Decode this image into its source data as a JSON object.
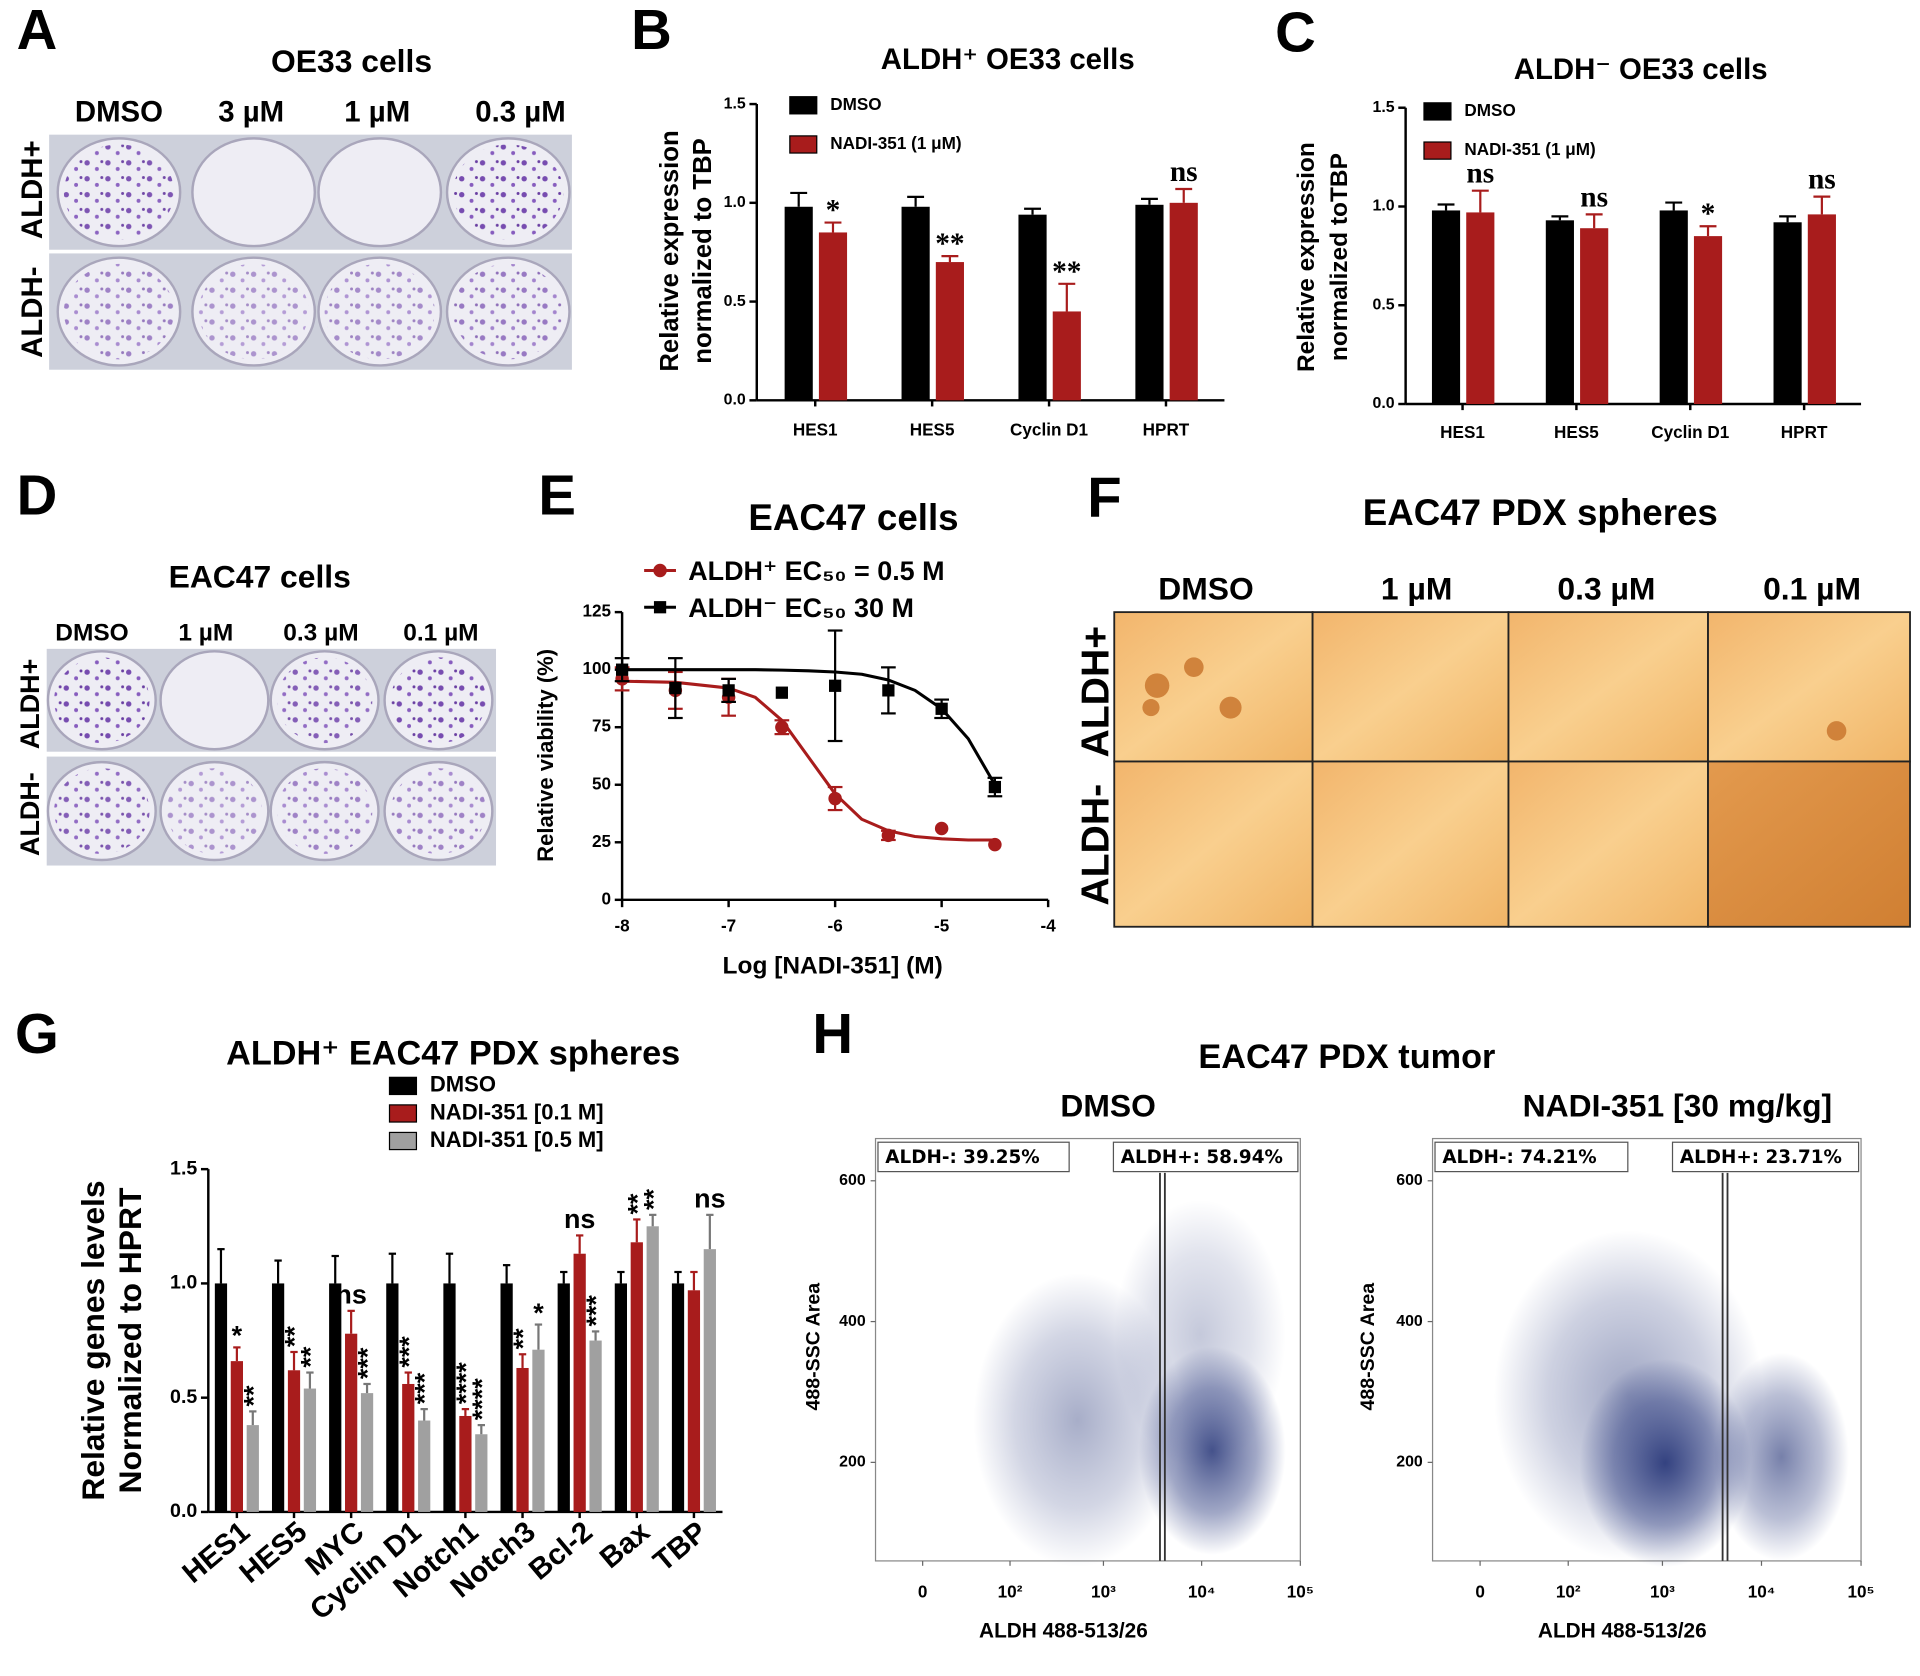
{
  "panel_letters": [
    "A",
    "B",
    "C",
    "D",
    "E",
    "F",
    "G",
    "H"
  ],
  "panel_a": {
    "title": "OE33 cells",
    "columns": [
      "DMSO",
      "3 µM",
      "1 µM",
      "0.3 µM"
    ],
    "rows": [
      "ALDH+",
      "ALDH-"
    ]
  },
  "panel_d": {
    "title": "EAC47 cells",
    "columns": [
      "DMSO",
      "1 µM",
      "0.3 µM",
      "0.1 µM"
    ],
    "rows": [
      "ALDH+",
      "ALDH-"
    ]
  },
  "panel_f": {
    "title": "EAC47 PDX spheres",
    "columns": [
      "DMSO",
      "1 µM",
      "0.3 µM",
      "0.1 µM"
    ],
    "rows": [
      "ALDH+",
      "ALDH-"
    ]
  },
  "panel_h": {
    "title": "EAC47 PDX tumor"
  },
  "chart_data": [
    {
      "type": "bar",
      "title": "ALDH⁺ OE33 cells",
      "ylabel": [
        "Relative expression",
        "normalized to TBP"
      ],
      "categories": [
        "HES1",
        "HES5",
        "Cyclin D1",
        "HPRT"
      ],
      "series": [
        {
          "name": "DMSO",
          "color": "#000000",
          "values": [
            0.98,
            0.98,
            0.94,
            0.99
          ],
          "errors": [
            0.07,
            0.05,
            0.03,
            0.03
          ]
        },
        {
          "name": "NADI-351 (1 μM)",
          "color": "#a81c1c",
          "values": [
            0.85,
            0.7,
            0.45,
            1.0
          ],
          "errors": [
            0.05,
            0.03,
            0.14,
            0.07
          ],
          "annotations": [
            "*",
            "**",
            "**",
            "ns"
          ]
        }
      ],
      "ylim": [
        0,
        1.5
      ],
      "yticks": [
        {
          "value": 0,
          "label": "0.0"
        },
        0.5,
        {
          "value": 1,
          "label": "1.0"
        },
        1.5
      ]
    },
    {
      "type": "bar",
      "title": "ALDH⁻ OE33 cells",
      "ylabel": [
        "Relative expression",
        "normalized toTBP"
      ],
      "categories": [
        "HES1",
        "HES5",
        "Cyclin D1",
        "HPRT"
      ],
      "series": [
        {
          "name": "DMSO",
          "color": "#000000",
          "values": [
            0.98,
            0.93,
            0.98,
            0.92
          ],
          "errors": [
            0.03,
            0.02,
            0.04,
            0.03
          ]
        },
        {
          "name": "NADI-351 (1 μM)",
          "color": "#a81c1c",
          "values": [
            0.97,
            0.89,
            0.85,
            0.96
          ],
          "errors": [
            0.11,
            0.07,
            0.05,
            0.09
          ],
          "annotations": [
            "ns",
            "ns",
            "*",
            "ns"
          ]
        }
      ],
      "ylim": [
        0,
        1.5
      ],
      "yticks": [
        {
          "value": 0,
          "label": "0.0"
        },
        0.5,
        {
          "value": 1,
          "label": "1.0"
        },
        1.5
      ]
    },
    {
      "type": "scatter",
      "title": "EAC47  cells",
      "xlabel": "Log [NADI-351] (M)",
      "ylabel": "Relative viability (%)",
      "x": [
        -8,
        -7.5,
        -7,
        -6.5,
        -6,
        -5.5,
        -5,
        -4.5
      ],
      "fit_x": [
        -8,
        -7.5,
        -7,
        -6.75,
        -6.5,
        -6.25,
        -6,
        -5.75,
        -5.5,
        -5.25,
        -5,
        -4.75,
        -4.5
      ],
      "series": [
        {
          "name": "ALDH⁺ EC₅₀ = 0.5   M",
          "color": "#a81c1c",
          "marker": "circle",
          "values": [
            96,
            91,
            88,
            75,
            44,
            28,
            31,
            24
          ],
          "errors": [
            5,
            8,
            8,
            3,
            5,
            2,
            0,
            0
          ],
          "fit_values": [
            95,
            94.5,
            92,
            88,
            78,
            62,
            46,
            35,
            30,
            27.5,
            26.5,
            26,
            26
          ]
        },
        {
          "name": "ALDH⁻ EC₅₀   30   M",
          "color": "#000000",
          "marker": "square",
          "values": [
            100,
            92,
            91,
            90,
            93,
            91,
            83,
            49
          ],
          "errors": [
            5,
            13,
            5,
            0,
            24,
            10,
            4,
            4
          ],
          "fit_values": [
            100,
            100,
            100,
            100,
            99.8,
            99.5,
            99,
            98,
            95.5,
            91,
            83,
            70,
            50
          ]
        }
      ],
      "xlim": [
        -8,
        -4
      ],
      "xticks": [
        -8,
        -7,
        -6,
        -5,
        -4
      ],
      "ylim": [
        0,
        125
      ],
      "yticks": [
        0,
        25,
        50,
        75,
        100,
        125
      ]
    },
    {
      "type": "bar",
      "title": "ALDH⁺ EAC47 PDX spheres",
      "ylabel": [
        "Relative genes levels",
        "Normalized to HPRT"
      ],
      "categories": [
        "HES1",
        "HES5",
        "MYC",
        "Cyclin D1",
        "Notch1",
        "Notch3",
        "Bcl-2",
        "Bax",
        "TBP"
      ],
      "series": [
        {
          "name": "DMSO",
          "color": "#000000",
          "values": [
            1.0,
            1.0,
            1.0,
            1.0,
            1.0,
            1.0,
            1.0,
            1.0,
            1.0
          ],
          "errors": [
            0.15,
            0.1,
            0.12,
            0.13,
            0.13,
            0.08,
            0.05,
            0.05,
            0.05
          ]
        },
        {
          "name": "NADI-351 [0.1   M]",
          "color": "#a81c1c",
          "values": [
            0.66,
            0.62,
            0.78,
            0.56,
            0.42,
            0.63,
            1.13,
            1.18,
            0.97
          ],
          "errors": [
            0.06,
            0.08,
            0.1,
            0.05,
            0.03,
            0.06,
            0.08,
            0.1,
            0.08
          ],
          "annotations": [
            "*",
            "**",
            "ns",
            "***",
            "****",
            "**",
            "ns",
            "**",
            null
          ]
        },
        {
          "name": "NADI-351 [0.5   M]",
          "color": "#a0a0a0",
          "values": [
            0.38,
            0.54,
            0.52,
            0.4,
            0.34,
            0.71,
            0.75,
            1.25,
            1.15
          ],
          "errors": [
            0.06,
            0.07,
            0.04,
            0.05,
            0.04,
            0.11,
            0.04,
            0.05,
            0.15
          ],
          "annotations": [
            "**",
            "**",
            "***",
            "***",
            "****",
            "*",
            "***",
            "**",
            "ns"
          ]
        }
      ],
      "ylim": [
        0,
        1.5
      ],
      "yticks": [
        {
          "value": 0,
          "label": "0.0"
        },
        0.5,
        {
          "value": 1,
          "label": "1.0"
        },
        1.5
      ]
    },
    {
      "type": "scatter",
      "title": "DMSO",
      "xlabel": "ALDH 488-513/26",
      "ylabel": "488-SSC Area",
      "xscale": "biexponential",
      "annotations": [
        "ALDH-: 39.25%",
        "ALDH+: 58.94%"
      ],
      "gate_x": 4000,
      "xlim": [
        -10,
        100000
      ],
      "xticks": [
        0,
        {
          "value": 100,
          "label": "10²"
        },
        {
          "value": 1000,
          "label": "10³"
        },
        {
          "value": 10000,
          "label": "10⁴"
        },
        {
          "value": 100000,
          "label": "10⁵"
        }
      ],
      "ylim": [
        60,
        660
      ],
      "yticks": [
        200,
        400,
        600
      ]
    },
    {
      "type": "scatter",
      "title": "NADI-351 [30 mg/kg]",
      "xlabel": "ALDH 488-513/26",
      "ylabel": "488-SSC Area",
      "xscale": "biexponential",
      "annotations": [
        "ALDH-: 74.21%",
        "ALDH+: 23.71%"
      ],
      "gate_x": 4300,
      "xlim": [
        -10,
        100000
      ],
      "xticks": [
        0,
        {
          "value": 100,
          "label": "10²"
        },
        {
          "value": 1000,
          "label": "10³"
        },
        {
          "value": 10000,
          "label": "10⁴"
        },
        {
          "value": 100000,
          "label": "10⁵"
        }
      ],
      "ylim": [
        60,
        660
      ],
      "yticks": [
        200,
        400,
        600
      ]
    }
  ]
}
